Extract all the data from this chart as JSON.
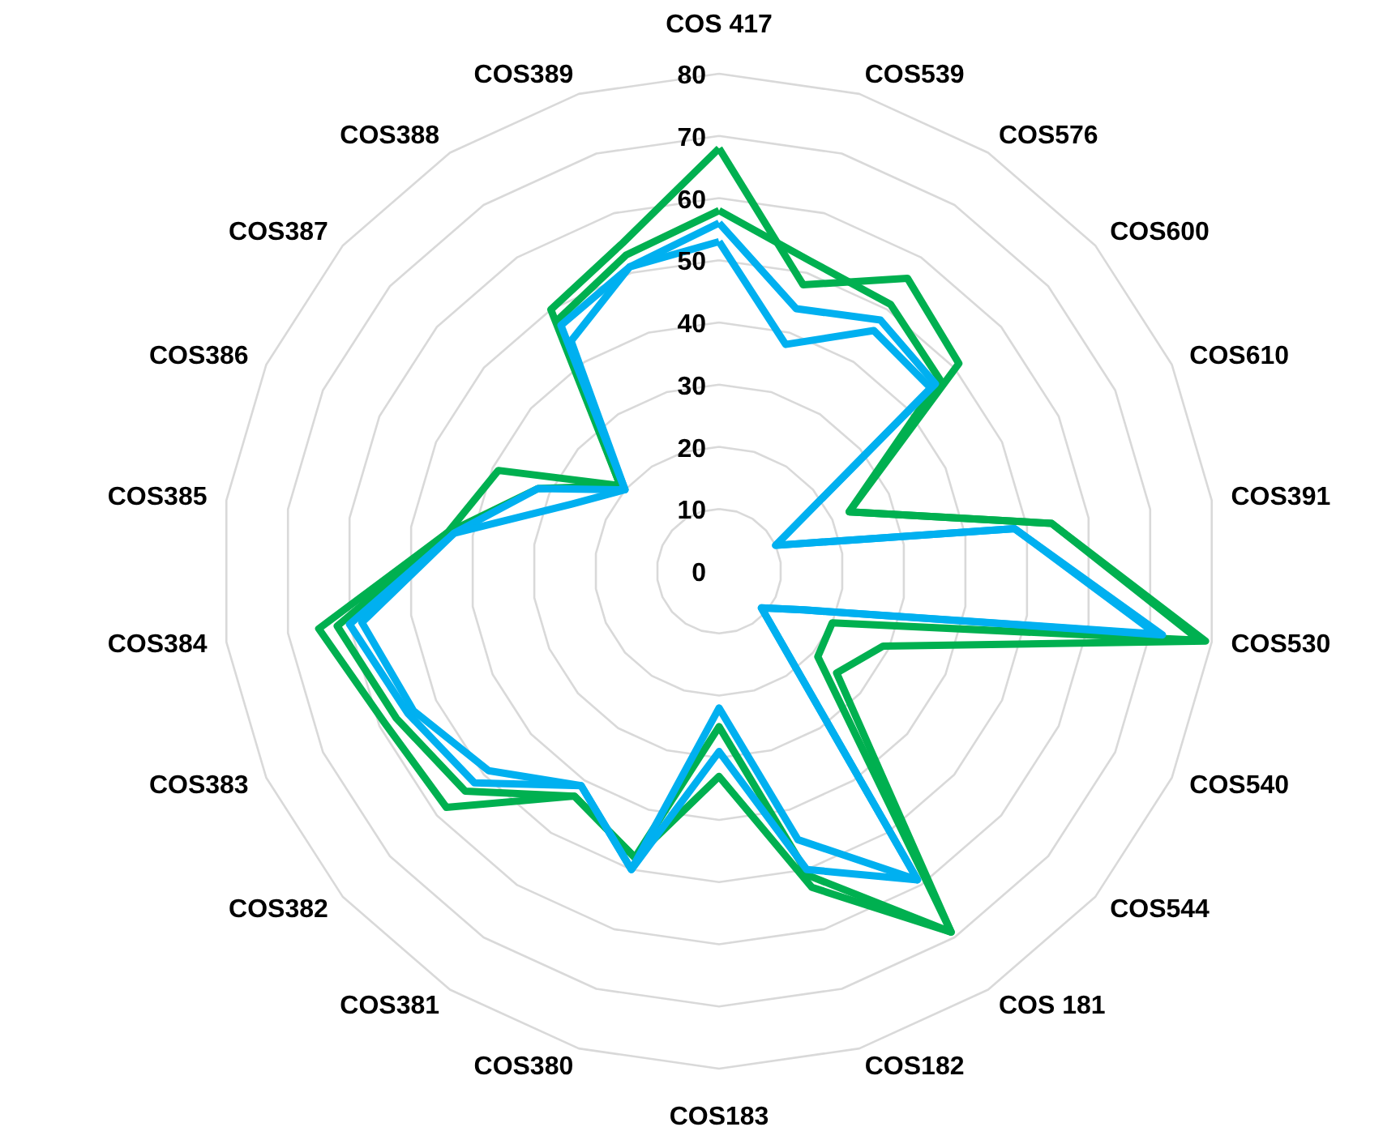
{
  "chart_data": {
    "type": "radar",
    "categories": [
      "COS 417",
      "COS539",
      "COS576",
      "COS600",
      "COS610",
      "COS391",
      "COS530",
      "COS540",
      "COS544",
      "COS 181",
      "COS182",
      "COS183",
      "COS380",
      "COS381",
      "COS382",
      "COS383",
      "COS384",
      "COS385",
      "COS386",
      "COS387",
      "COS388",
      "COS389"
    ],
    "series": [
      {
        "color": "#00b050",
        "values": [
          68,
          48,
          56,
          51,
          23,
          54,
          79,
          29,
          25,
          69,
          53,
          33,
          48,
          43,
          58,
          59,
          65,
          44,
          39,
          21,
          50,
          55
        ]
      },
      {
        "color": "#00b050",
        "values": [
          58,
          52,
          51,
          47,
          23,
          54,
          78,
          20,
          21,
          69,
          51,
          25,
          48,
          43,
          54,
          57,
          62,
          44,
          32,
          21,
          48,
          53
        ]
      },
      {
        "color": "#00b0f0",
        "values": [
          56,
          44,
          48,
          46,
          10,
          48,
          72,
          15,
          9,
          59,
          50,
          29,
          50,
          41,
          52,
          55,
          60,
          43,
          32,
          20,
          47,
          51
        ]
      },
      {
        "color": "#00b0f0",
        "values": [
          53,
          38,
          46,
          45,
          10,
          48,
          71,
          15,
          9,
          59,
          45,
          22,
          50,
          41,
          49,
          54,
          58,
          43,
          26,
          20,
          44,
          51
        ]
      }
    ],
    "ylim": [
      0,
      80
    ],
    "yticks": [
      0,
      10,
      20,
      30,
      40,
      50,
      60,
      70,
      80
    ],
    "grid": true
  }
}
